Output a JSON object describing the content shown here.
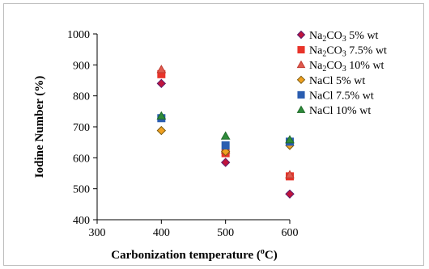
{
  "chart_data": {
    "type": "scatter",
    "xlabel": "Carbonization temperature (",
    "xlabel_sup": "o",
    "xlabel_end": "C)",
    "ylabel": "Iodine Number (%)",
    "xlim": [
      300,
      600
    ],
    "ylim": [
      400,
      1000
    ],
    "xticks": [
      "300",
      "400",
      "500",
      "600"
    ],
    "yticks": [
      "400",
      "500",
      "600",
      "700",
      "800",
      "900",
      "1000"
    ],
    "grid": false,
    "legend_position": "right",
    "series": [
      {
        "legend_parts": [
          {
            "t": "Na"
          },
          {
            "t": "2",
            "sub": true
          },
          {
            "t": "CO"
          },
          {
            "t": "3",
            "sub": true
          },
          {
            "t": " 5% wt"
          }
        ],
        "marker": "diamond",
        "color": "#c0143c",
        "stroke": "#5a1a6a",
        "points": [
          [
            400,
            840
          ],
          [
            500,
            585
          ],
          [
            600,
            483
          ]
        ]
      },
      {
        "legend_parts": [
          {
            "t": "Na"
          },
          {
            "t": "2",
            "sub": true
          },
          {
            "t": "CO"
          },
          {
            "t": "3",
            "sub": true
          },
          {
            "t": " 7.5% wt"
          }
        ],
        "marker": "square",
        "color": "#e8342a",
        "stroke": "#e8342a",
        "points": [
          [
            400,
            870
          ],
          [
            500,
            615
          ],
          [
            600,
            540
          ]
        ]
      },
      {
        "legend_parts": [
          {
            "t": "Na"
          },
          {
            "t": "2",
            "sub": true
          },
          {
            "t": "CO"
          },
          {
            "t": "3",
            "sub": true
          },
          {
            "t": " 10% wt"
          }
        ],
        "marker": "triangle",
        "color": "#e05a4e",
        "stroke": "#c03a30",
        "points": [
          [
            400,
            885
          ],
          [
            500,
            625
          ],
          [
            600,
            545
          ]
        ]
      },
      {
        "legend_parts": [
          {
            "t": "NaCl 5% wt"
          }
        ],
        "marker": "diamond",
        "color": "#f0a020",
        "stroke": "#7a5a10",
        "points": [
          [
            400,
            688
          ],
          [
            500,
            620
          ],
          [
            600,
            640
          ]
        ]
      },
      {
        "legend_parts": [
          {
            "t": "NaCl 7.5% wt"
          }
        ],
        "marker": "square",
        "color": "#2a5db0",
        "stroke": "#2a5db0",
        "points": [
          [
            400,
            728
          ],
          [
            500,
            640
          ],
          [
            600,
            652
          ]
        ]
      },
      {
        "legend_parts": [
          {
            "t": "NaCl 10% wt"
          }
        ],
        "marker": "triangle",
        "color": "#2e8b3a",
        "stroke": "#1e6a28",
        "points": [
          [
            400,
            735
          ],
          [
            500,
            670
          ],
          [
            600,
            658
          ]
        ]
      }
    ]
  }
}
